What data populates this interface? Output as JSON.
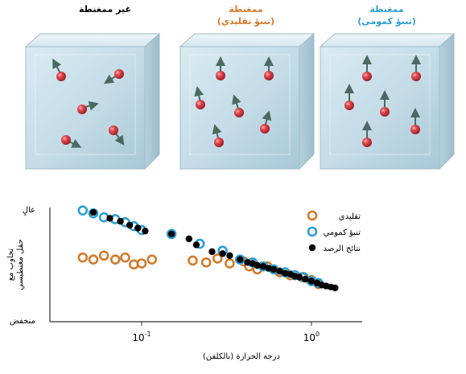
{
  "panels": [
    {
      "title": "غير ممغنطة",
      "subtitle": "",
      "color": "#222222"
    },
    {
      "title": "ممغنطة",
      "subtitle": "(تنبؤ تقليدي)",
      "color": "#d27a2a"
    },
    {
      "title": "ممغنطة",
      "subtitle": "(تنبؤ كمومي)",
      "color": "#2a9fd4"
    }
  ],
  "colors": {
    "classical": "#d27a2a",
    "quantum": "#2a9fd4",
    "observed": "#000000",
    "cube_face": "#c4dde8",
    "atom": "#d8323a"
  },
  "chart_data": {
    "type": "scatter",
    "x_scale": "log",
    "xlim": [
      0.04,
      1.6
    ],
    "xticks": [
      {
        "value": 0.1,
        "base": "10",
        "exp": "-1"
      },
      {
        "value": 1,
        "base": "10",
        "exp": "0"
      }
    ],
    "xlabel": "درجة الحرارة (بالكلفن)",
    "ylabel_lines": [
      "تجاوب مع",
      "حقل مغنطيسي"
    ],
    "y_high_label": "عالٍ",
    "y_low_label": "منخفض",
    "ylim": [
      0,
      1
    ],
    "legend_position": "top-right",
    "series": [
      {
        "name": "تقليدي",
        "marker": "ring",
        "color": "#d27a2a",
        "x": [
          0.045,
          0.052,
          0.06,
          0.07,
          0.08,
          0.09,
          0.1,
          0.115,
          0.2,
          0.24,
          0.28,
          0.33,
          0.4,
          0.43,
          0.48,
          0.55,
          0.65,
          0.75,
          0.88,
          1.0,
          1.1
        ],
        "y": [
          0.49,
          0.47,
          0.51,
          0.47,
          0.49,
          0.42,
          0.43,
          0.47,
          0.46,
          0.44,
          0.48,
          0.43,
          0.45,
          0.4,
          0.37,
          0.4,
          0.34,
          0.31,
          0.29,
          0.26,
          0.22
        ]
      },
      {
        "name": "تنبؤ كمومي",
        "marker": "ring",
        "color": "#2a9fd4",
        "x": [
          0.045,
          0.052,
          0.06,
          0.07,
          0.08,
          0.09,
          0.1,
          0.15,
          0.22,
          0.3,
          0.38,
          0.45,
          0.52,
          0.6,
          0.7,
          0.8,
          0.9,
          1.0,
          1.1
        ],
        "y": [
          0.97,
          0.94,
          0.9,
          0.88,
          0.85,
          0.81,
          0.77,
          0.73,
          0.63,
          0.56,
          0.47,
          0.44,
          0.4,
          0.37,
          0.34,
          0.31,
          0.29,
          0.25,
          0.23
        ]
      },
      {
        "name": "نتائج الرصد",
        "marker": "dot",
        "color": "#000000",
        "x": [
          0.052,
          0.065,
          0.075,
          0.085,
          0.095,
          0.105,
          0.15,
          0.19,
          0.21,
          0.26,
          0.3,
          0.33,
          0.38,
          0.42,
          0.45,
          0.48,
          0.52,
          0.56,
          0.6,
          0.65,
          0.7,
          0.75,
          0.8,
          0.85,
          0.92,
          1.0,
          1.08,
          1.15,
          1.22,
          1.3,
          1.38
        ],
        "y": [
          0.95,
          0.89,
          0.86,
          0.82,
          0.79,
          0.76,
          0.73,
          0.68,
          0.62,
          0.55,
          0.53,
          0.51,
          0.47,
          0.44,
          0.43,
          0.41,
          0.4,
          0.38,
          0.37,
          0.35,
          0.33,
          0.32,
          0.3,
          0.29,
          0.27,
          0.25,
          0.23,
          0.21,
          0.2,
          0.19,
          0.18
        ]
      }
    ]
  }
}
